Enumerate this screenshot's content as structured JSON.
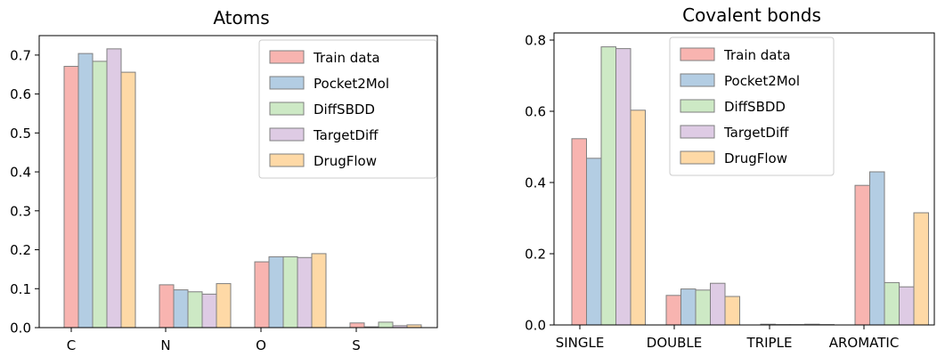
{
  "chart_data": [
    {
      "type": "bar",
      "title": "Atoms",
      "xlabel": "",
      "ylabel": "",
      "categories": [
        "C",
        "N",
        "O",
        "S"
      ],
      "ylim": [
        0,
        0.75
      ],
      "yticks": [
        "0.0",
        "0.1",
        "0.2",
        "0.3",
        "0.4",
        "0.5",
        "0.6",
        "0.7"
      ],
      "legend_position": "top-right",
      "series": [
        {
          "name": "Train data",
          "color": "#f8b4b0",
          "values": [
            0.671,
            0.11,
            0.169,
            0.012
          ]
        },
        {
          "name": "Pocket2Mol",
          "color": "#b3cde3",
          "values": [
            0.704,
            0.097,
            0.182,
            0.002
          ]
        },
        {
          "name": "DiffSBDD",
          "color": "#cde9c5",
          "values": [
            0.684,
            0.092,
            0.182,
            0.014
          ]
        },
        {
          "name": "TargetDiff",
          "color": "#decbe4",
          "values": [
            0.716,
            0.086,
            0.18,
            0.005
          ]
        },
        {
          "name": "DrugFlow",
          "color": "#fed9a6",
          "values": [
            0.656,
            0.113,
            0.19,
            0.007
          ]
        }
      ]
    },
    {
      "type": "bar",
      "title": "Covalent bonds",
      "xlabel": "",
      "ylabel": "",
      "categories": [
        "SINGLE",
        "DOUBLE",
        "TRIPLE",
        "AROMATIC"
      ],
      "ylim": [
        0,
        0.82
      ],
      "yticks": [
        "0.0",
        "0.2",
        "0.4",
        "0.6",
        "0.8"
      ],
      "legend_position": "top-center",
      "series": [
        {
          "name": "Train data",
          "color": "#f8b4b0",
          "values": [
            0.523,
            0.083,
            0.002,
            0.392
          ]
        },
        {
          "name": "Pocket2Mol",
          "color": "#b3cde3",
          "values": [
            0.468,
            0.101,
            0.001,
            0.43
          ]
        },
        {
          "name": "DiffSBDD",
          "color": "#cde9c5",
          "values": [
            0.781,
            0.098,
            0.001,
            0.119
          ]
        },
        {
          "name": "TargetDiff",
          "color": "#decbe4",
          "values": [
            0.776,
            0.117,
            0.002,
            0.107
          ]
        },
        {
          "name": "DrugFlow",
          "color": "#fed9a6",
          "values": [
            0.603,
            0.08,
            0.001,
            0.315
          ]
        }
      ]
    }
  ]
}
